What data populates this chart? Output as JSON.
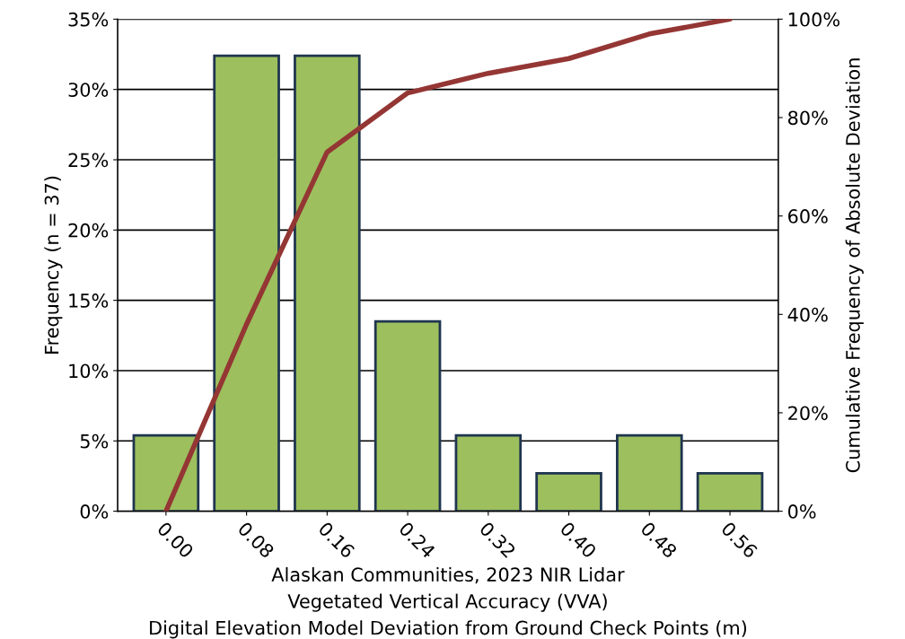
{
  "chart_data": {
    "type": "bar",
    "xlabel": "Alaskan Communities, 2023 NIR Lidar\nVegetated Vertical Accuracy (VVA)\nDigital Elevation Model Deviation from Ground Check Points (m)",
    "ylabel": "Frequency (n = 37)",
    "y2label": "Cumulative Frequency of Absolute Deviation",
    "categories": [
      "0.00",
      "0.08",
      "0.16",
      "0.24",
      "0.32",
      "0.40",
      "0.48",
      "0.56"
    ],
    "series": [
      {
        "color": "#9dbf5e",
        "values": [
          5.4,
          32.4,
          32.4,
          13.5,
          5.4,
          2.7,
          5.4,
          2.7
        ]
      },
      {
        "type": "line",
        "axis": "y2",
        "color": "#943634",
        "values": [
          0,
          38,
          73,
          85,
          89,
          92,
          97,
          100
        ]
      }
    ],
    "ylim": [
      0,
      35
    ],
    "yticks": [
      {
        "value": 0,
        "label": "0%"
      },
      {
        "value": 5,
        "label": "5%"
      },
      {
        "value": 10,
        "label": "10%"
      },
      {
        "value": 15,
        "label": "15%"
      },
      {
        "value": 20,
        "label": "20%"
      },
      {
        "value": 25,
        "label": "25%"
      },
      {
        "value": 30,
        "label": "30%"
      },
      {
        "value": 35,
        "label": "35%"
      }
    ],
    "y2lim": [
      0,
      100
    ],
    "y2ticks": [
      {
        "value": 0,
        "label": "0%"
      },
      {
        "value": 20,
        "label": "20%"
      },
      {
        "value": 40,
        "label": "40%"
      },
      {
        "value": 60,
        "label": "60%"
      },
      {
        "value": 80,
        "label": "80%"
      },
      {
        "value": 100,
        "label": "100%"
      }
    ],
    "grid": "y",
    "marker": "none",
    "line_style": "solid"
  }
}
